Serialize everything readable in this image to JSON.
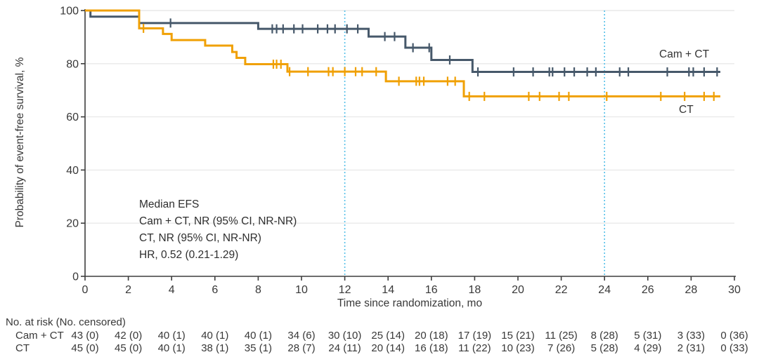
{
  "chart_data": {
    "type": "line",
    "subtype": "kaplan-meier-step",
    "title": "",
    "xlabel": "Time since randomization, mo",
    "ylabel": "Probability of event-free survival, %",
    "xlim": [
      0,
      30
    ],
    "ylim": [
      0,
      100
    ],
    "x_ticks": [
      0,
      2,
      4,
      6,
      8,
      10,
      12,
      14,
      16,
      18,
      20,
      22,
      24,
      26,
      28,
      30
    ],
    "y_ticks": [
      0,
      20,
      40,
      60,
      80,
      100
    ],
    "grid": "horizontal",
    "reference_lines_x": [
      12,
      24
    ],
    "end_month": 29.35,
    "legend_position": "end-of-line labels",
    "series": [
      {
        "name": "Cam + CT",
        "color": "#46586A",
        "steps": [
          [
            0,
            100
          ],
          [
            0.25,
            97.7
          ],
          [
            2.5,
            95.3
          ],
          [
            8.0,
            93.1
          ],
          [
            13.1,
            90.2
          ],
          [
            14.8,
            86.0
          ],
          [
            16.0,
            81.4
          ],
          [
            17.9,
            76.9
          ]
        ],
        "censor_months": [
          3.95,
          8.65,
          8.85,
          9.15,
          9.65,
          10.05,
          10.75,
          11.2,
          11.55,
          12.1,
          12.6,
          13.85,
          14.3,
          15.15,
          15.9,
          16.85,
          18.15,
          19.8,
          20.7,
          21.45,
          21.6,
          22.15,
          22.6,
          23.2,
          23.6,
          24.7,
          25.1,
          26.9,
          27.9,
          28.1,
          28.6,
          29.2
        ]
      },
      {
        "name": "CT",
        "color": "#F0A004",
        "steps": [
          [
            0,
            100
          ],
          [
            2.5,
            93.3
          ],
          [
            3.6,
            91.2
          ],
          [
            4.0,
            88.9
          ],
          [
            5.55,
            86.8
          ],
          [
            6.8,
            84.4
          ],
          [
            7.0,
            82.2
          ],
          [
            7.4,
            79.8
          ],
          [
            9.35,
            77.0
          ],
          [
            13.9,
            73.4
          ],
          [
            17.5,
            67.7
          ]
        ],
        "censor_months": [
          2.7,
          8.7,
          8.85,
          9.05,
          9.45,
          10.3,
          11.25,
          11.45,
          12.0,
          12.5,
          12.8,
          13.45,
          14.5,
          15.3,
          15.45,
          15.65,
          16.75,
          17.1,
          17.75,
          18.45,
          20.5,
          21.0,
          21.9,
          22.35,
          24.1,
          26.6,
          27.7,
          28.6,
          29.05
        ]
      }
    ]
  },
  "annotation": {
    "line1": "Median EFS",
    "line2": "Cam + CT, NR (95% CI, NR-NR)",
    "line3": "CT, NR (95% CI, NR-NR)",
    "line4": "HR, 0.52 (0.21-1.29)"
  },
  "risk_table": {
    "title": "No. at risk (No. censored)",
    "time_points": [
      0,
      2,
      4,
      6,
      8,
      10,
      12,
      14,
      16,
      18,
      20,
      22,
      24,
      26,
      28,
      30
    ],
    "rows": [
      {
        "label": "Cam + CT",
        "values": [
          "43 (0)",
          "42 (0)",
          "40 (1)",
          "40 (1)",
          "40 (1)",
          "34 (6)",
          "30 (10)",
          "25 (14)",
          "20 (18)",
          "17 (19)",
          "15 (21)",
          "11 (25)",
          "8 (28)",
          "5 (31)",
          "3 (33)",
          "0 (36)"
        ]
      },
      {
        "label": "CT",
        "values": [
          "45 (0)",
          "45 (0)",
          "40 (1)",
          "38 (1)",
          "35 (1)",
          "28 (7)",
          "24 (11)",
          "20 (14)",
          "16 (18)",
          "11 (22)",
          "10 (23)",
          "7 (26)",
          "5 (28)",
          "4 (29)",
          "2 (31)",
          "0 (33)"
        ]
      }
    ]
  },
  "colors": {
    "cam_ct_line": "#46586A",
    "ct_line": "#F0A004",
    "reference_line": "#55C0E8",
    "gridline": "#E9E9E9",
    "axis": "#3D3D3D",
    "text": "#383838"
  }
}
